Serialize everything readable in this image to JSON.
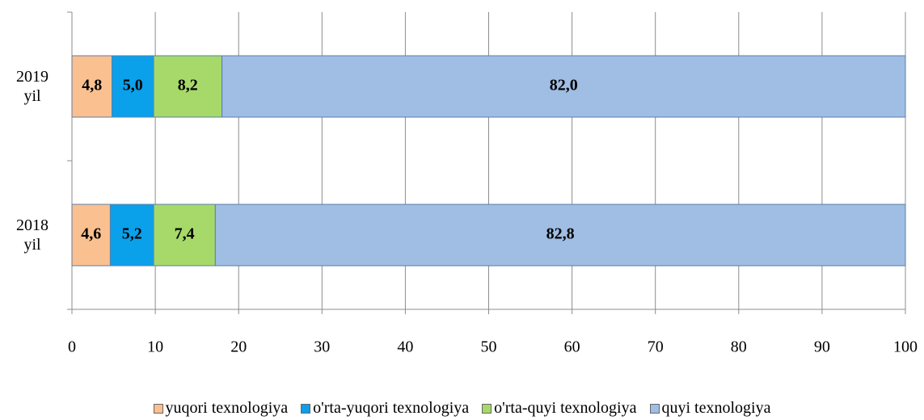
{
  "chart_data": {
    "type": "stacked-barh",
    "categories": [
      "2019 yil",
      "2018 yil"
    ],
    "series": [
      {
        "name": "yuqori texnologiya",
        "color": "#fac090",
        "values": [
          4.8,
          4.6
        ],
        "value_labels": [
          "4,8",
          "4,6"
        ]
      },
      {
        "name": "o'rta-yuqori texnologiya",
        "color": "#0aa0ea",
        "values": [
          5.0,
          5.2
        ],
        "value_labels": [
          "5,0",
          "5,2"
        ]
      },
      {
        "name": "o'rta-quyi texnologiya",
        "color": "#a6d96a",
        "values": [
          8.2,
          7.4
        ],
        "value_labels": [
          "8,2",
          "7,4"
        ]
      },
      {
        "name": "quyi texnologiya",
        "color": "#a0bde3",
        "values": [
          82.0,
          82.8
        ],
        "value_labels": [
          "82,0",
          "82,8"
        ]
      }
    ],
    "xlim": [
      0,
      100
    ],
    "xticks": [
      0,
      10,
      20,
      30,
      40,
      50,
      60,
      70,
      80,
      90,
      100
    ],
    "grid": true,
    "legend": "bottom"
  }
}
